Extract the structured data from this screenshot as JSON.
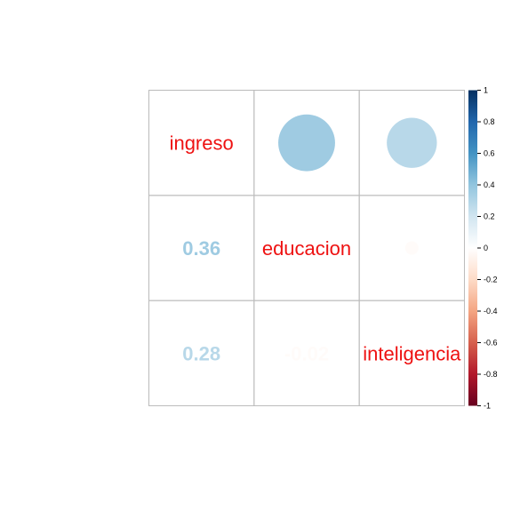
{
  "chart_data": {
    "type": "heatmap",
    "variables": [
      "ingreso",
      "educacion",
      "inteligencia"
    ],
    "matrix": [
      [
        1,
        0.36,
        0.28
      ],
      [
        0.36,
        1,
        -0.02
      ],
      [
        0.28,
        -0.02,
        1
      ]
    ],
    "lower_labels": [
      "0.36",
      "0.28",
      "-0.02"
    ],
    "upper_method": "circle",
    "lower_method": "number",
    "diagonal_label_color": "#ee1111",
    "colorbar": {
      "range": [
        -1,
        1
      ],
      "ticks": [
        "1",
        "0.8",
        "0.6",
        "0.4",
        "0.2",
        "0",
        "-0.2",
        "-0.4",
        "-0.6",
        "-0.8",
        "-1"
      ],
      "tick_values": [
        1,
        0.8,
        0.6,
        0.4,
        0.2,
        0,
        -0.2,
        -0.4,
        -0.6,
        -0.8,
        -1
      ],
      "palette": [
        "#67001F",
        "#B2182B",
        "#D6604D",
        "#F4A582",
        "#FDDBC7",
        "#FFFFFF",
        "#D1E5F0",
        "#92C5DE",
        "#4393C3",
        "#2166AC",
        "#053061"
      ]
    },
    "grid_color": "#bbbbbb"
  }
}
